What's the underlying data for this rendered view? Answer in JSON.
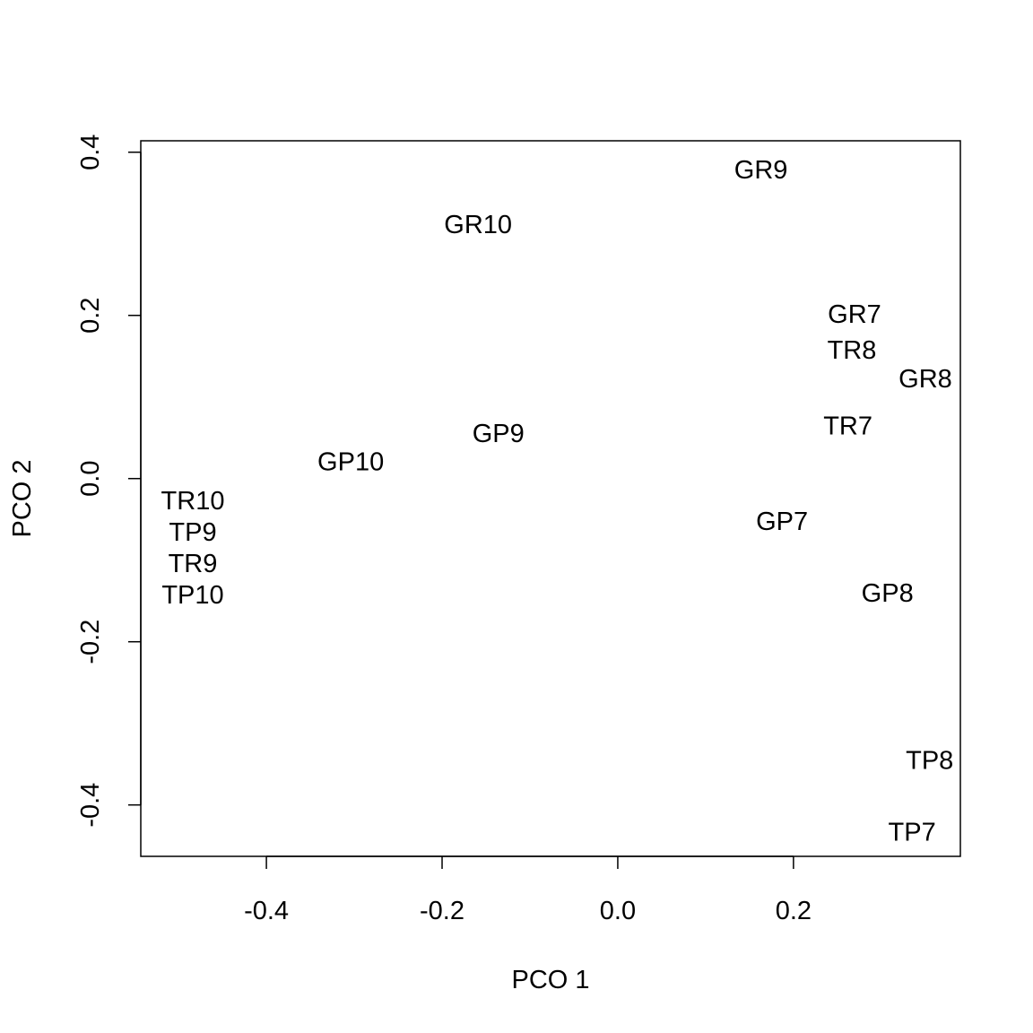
{
  "chart_data": {
    "type": "scatter",
    "title": "",
    "xlabel": "PCO 1",
    "ylabel": "PCO 2",
    "xlim": [
      -0.543,
      0.39
    ],
    "ylim": [
      -0.463,
      0.414
    ],
    "xticks": [
      -0.4,
      -0.2,
      0.0,
      0.2
    ],
    "xtick_labels": [
      "-0.4",
      "-0.2",
      "0.0",
      "0.2"
    ],
    "yticks": [
      -0.4,
      -0.2,
      0.0,
      0.2,
      0.4
    ],
    "ytick_labels": [
      "-0.4",
      "-0.2",
      "0.0",
      "0.2",
      "0.4"
    ],
    "grid": false,
    "marker": "text-label",
    "points": [
      {
        "label": "GR9",
        "x": 0.163,
        "y": 0.379
      },
      {
        "label": "GR10",
        "x": -0.159,
        "y": 0.312
      },
      {
        "label": "GR7",
        "x": 0.269,
        "y": 0.163
      },
      {
        "label": "TR8",
        "x": 0.287,
        "y": 0.151
      },
      {
        "label": "GR8",
        "x": 0.35,
        "y": 0.14
      },
      {
        "label": "TR7",
        "x": 0.262,
        "y": 0.065
      },
      {
        "label": "GP9",
        "x": -0.136,
        "y": 0.056
      },
      {
        "label": "GP10",
        "x": -0.304,
        "y": 0.021
      },
      {
        "label": "TR10",
        "x": -0.471,
        "y": -0.07
      },
      {
        "label": "TP9",
        "x": -0.461,
        "y": -0.084
      },
      {
        "label": "TR9",
        "x": -0.507,
        "y": -0.097
      },
      {
        "label": "TP10",
        "x": -0.473,
        "y": -0.1
      },
      {
        "label": "GP7",
        "x": 0.187,
        "y": -0.052
      },
      {
        "label": "GP8",
        "x": 0.307,
        "y": -0.14
      },
      {
        "label": "TP8",
        "x": 0.355,
        "y": -0.345
      },
      {
        "label": "TP7",
        "x": 0.335,
        "y": -0.433
      }
    ]
  }
}
